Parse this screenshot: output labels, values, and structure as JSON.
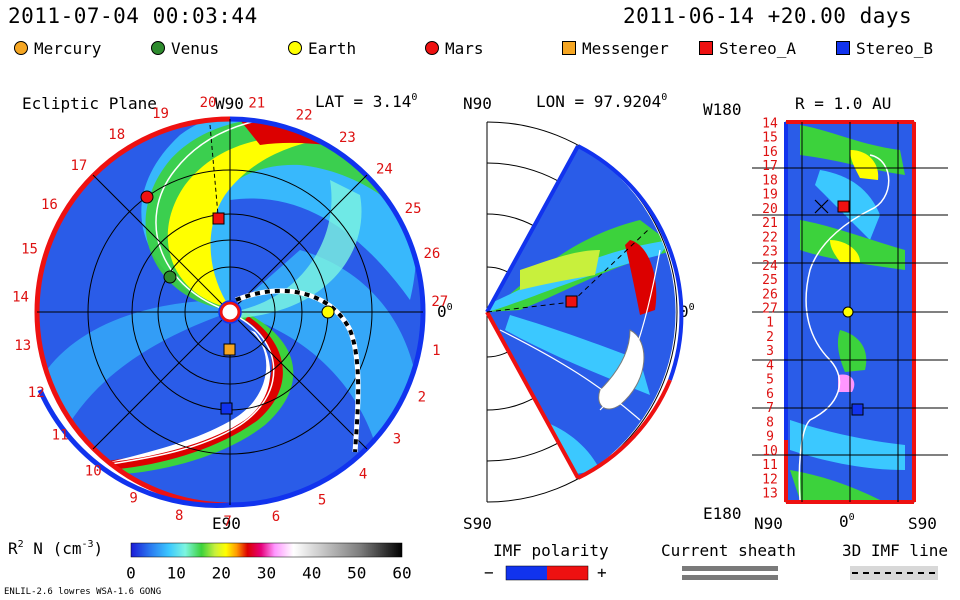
{
  "header": {
    "timestamp": "2011-07-04 00:03:44",
    "run_time": "2011-06-14 +20.00 days"
  },
  "bodies": [
    {
      "name": "Mercury",
      "shape": "circle",
      "color": "#f5a623"
    },
    {
      "name": "Venus",
      "shape": "circle",
      "color": "#2e8b2e"
    },
    {
      "name": "Earth",
      "shape": "circle",
      "color": "#ffff00"
    },
    {
      "name": "Mars",
      "shape": "circle",
      "color": "#ee1111"
    },
    {
      "name": "Messenger",
      "shape": "square",
      "color": "#f5a623"
    },
    {
      "name": "Stereo_A",
      "shape": "square",
      "color": "#ee1111"
    },
    {
      "name": "Stereo_B",
      "shape": "square",
      "color": "#1133ee"
    }
  ],
  "panels": {
    "ecliptic": {
      "title": "Ecliptic Plane",
      "lat_label": "LAT = 3.14",
      "lat_unit": "0",
      "top_label": "W90",
      "bottom_label": "E90",
      "right_label": "0",
      "right_unit": "0",
      "rotation_numbers": [
        "20",
        "21",
        "22",
        "23",
        "24",
        "25",
        "26",
        "27",
        "1",
        "2",
        "3",
        "4",
        "5",
        "6",
        "7",
        "8",
        "9",
        "10",
        "11",
        "12",
        "13",
        "14",
        "15",
        "16",
        "17",
        "18",
        "19"
      ]
    },
    "meridional": {
      "lon_label": "LON = 97.9204",
      "lon_unit": "0",
      "top_label": "N90",
      "bottom_label": "S90",
      "right_label": "0",
      "right_unit": "0"
    },
    "radial": {
      "r_label": "R = 1.0 AU",
      "top_left_label": "W180",
      "bottom_left_label": "E180",
      "x_ticks": [
        "N90",
        "0",
        "S90"
      ],
      "x_unit": "0",
      "y_ticks": [
        "14",
        "15",
        "16",
        "17",
        "18",
        "19",
        "20",
        "21",
        "22",
        "23",
        "24",
        "25",
        "26",
        "27",
        "1",
        "2",
        "3",
        "4",
        "5",
        "6",
        "7",
        "8",
        "9",
        "10",
        "11",
        "12",
        "13"
      ]
    }
  },
  "colorbar": {
    "label": "R",
    "label_sup": "2",
    "label_rest": " N (cm",
    "label_exp": "-3",
    "label_close": ")",
    "ticks": [
      "0",
      "10",
      "20",
      "30",
      "40",
      "50",
      "60"
    ]
  },
  "imf_legend": {
    "polarity_title": "IMF polarity",
    "minus": "−",
    "plus": "+",
    "sheath_title": "Current sheath",
    "imf_line_title": "3D IMF line"
  },
  "footer": {
    "model": "ENLIL-2.6 lowres WSA-1.6 GONG"
  },
  "chart_data": {
    "type": "heatmap",
    "quantity": "R^2 N (cm^-3)",
    "range": [
      0,
      60
    ],
    "colormap": [
      "#1b1bd6",
      "#2a78f0",
      "#3bc8ff",
      "#7df5e0",
      "#3cd23c",
      "#c8f03c",
      "#ffff00",
      "#ff9a00",
      "#dc0000",
      "#e6007a",
      "#ff96ff",
      "#ffffff",
      "#c0c0c0",
      "#7a7a7a",
      "#000000"
    ],
    "timestamp": "2011-07-04 00:03:44",
    "panels": [
      "Ecliptic Plane",
      "LON = 97.9204",
      "R = 1.0 AU"
    ]
  }
}
